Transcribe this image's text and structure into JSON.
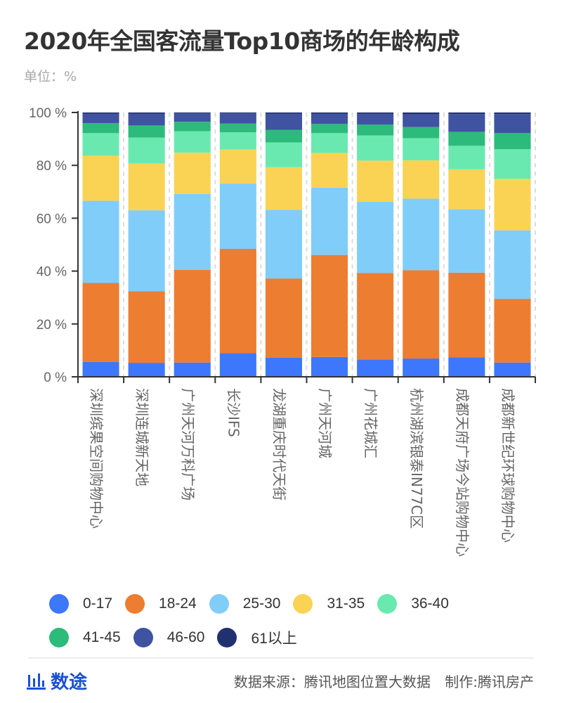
{
  "header": {
    "title": "2020年全国客流量Top10商场的年龄构成",
    "unit": "单位：%"
  },
  "chart_data": {
    "type": "bar",
    "stacked": true,
    "title": "2020年全国客流量Top10商场的年龄构成",
    "subtitle": "单位：%",
    "xlabel": "",
    "ylabel": "",
    "ylim": [
      0,
      100
    ],
    "yticks": [
      0,
      20,
      40,
      60,
      80,
      100
    ],
    "ytick_labels": [
      "0 %",
      "20 %",
      "40 %",
      "60 %",
      "80 %",
      "100 %"
    ],
    "grid": "vertical dashed separators between bars",
    "legend_position": "bottom",
    "categories": [
      "深圳缤果空间购物中心",
      "深圳连城新天地",
      "广州天河万科广场",
      "长沙IFS",
      "龙湖重庆时代天街",
      "广州天河城",
      "广州花城汇",
      "杭州湖滨银泰IN77C区",
      "成都天府广场今站购物中心",
      "成都新世纪环球购物中心"
    ],
    "series": [
      {
        "name": "0-17",
        "color": "#3d77fc",
        "values": [
          5.6,
          5.3,
          5.4,
          8.9,
          7.2,
          7.5,
          6.5,
          6.9,
          7.4,
          5.4
        ]
      },
      {
        "name": "18-24",
        "color": "#ed7d31",
        "values": [
          29.9,
          27.1,
          35.1,
          39.5,
          30.0,
          38.6,
          32.8,
          33.4,
          32.0,
          24.1
        ]
      },
      {
        "name": "25-30",
        "color": "#80cdf9",
        "values": [
          31.1,
          30.6,
          28.7,
          24.7,
          26.0,
          25.5,
          26.9,
          27.1,
          24.0,
          25.9
        ]
      },
      {
        "name": "31-35",
        "color": "#fad355",
        "values": [
          17.0,
          17.7,
          15.6,
          12.9,
          16.1,
          13.1,
          15.6,
          14.5,
          15.1,
          19.5
        ]
      },
      {
        "name": "36-40",
        "color": "#69e9b0",
        "values": [
          8.6,
          9.8,
          8.1,
          6.5,
          9.4,
          7.5,
          9.5,
          8.4,
          8.9,
          11.2
        ]
      },
      {
        "name": "41-45",
        "color": "#2cbb7a",
        "values": [
          3.8,
          4.6,
          3.6,
          3.3,
          4.7,
          3.5,
          4.1,
          4.2,
          5.3,
          6.1
        ]
      },
      {
        "name": "46-60",
        "color": "#3f53a1",
        "values": [
          3.5,
          4.4,
          3.2,
          3.9,
          6.1,
          3.9,
          4.1,
          4.8,
          6.7,
          7.2
        ]
      },
      {
        "name": "61以上",
        "color": "#21306f",
        "values": [
          0.5,
          0.5,
          0.3,
          0.3,
          0.5,
          0.4,
          0.5,
          0.7,
          0.6,
          0.6
        ]
      }
    ]
  },
  "legend": {
    "items": [
      {
        "label": "0-17",
        "color": "#3d77fc"
      },
      {
        "label": "18-24",
        "color": "#ed7d31"
      },
      {
        "label": "25-30",
        "color": "#80cdf9"
      },
      {
        "label": "31-35",
        "color": "#fad355"
      },
      {
        "label": "36-40",
        "color": "#69e9b0"
      },
      {
        "label": "41-45",
        "color": "#2cbb7a"
      },
      {
        "label": "46-60",
        "color": "#3f53a1"
      },
      {
        "label": "61以上",
        "color": "#21306f"
      }
    ]
  },
  "footer": {
    "logo_icon": "bar-chart-icon",
    "logo_text": "数途",
    "brand_color": "#1a4fd8",
    "source": "数据来源：腾讯地图位置大数据",
    "producer": "制作:腾讯房产"
  }
}
